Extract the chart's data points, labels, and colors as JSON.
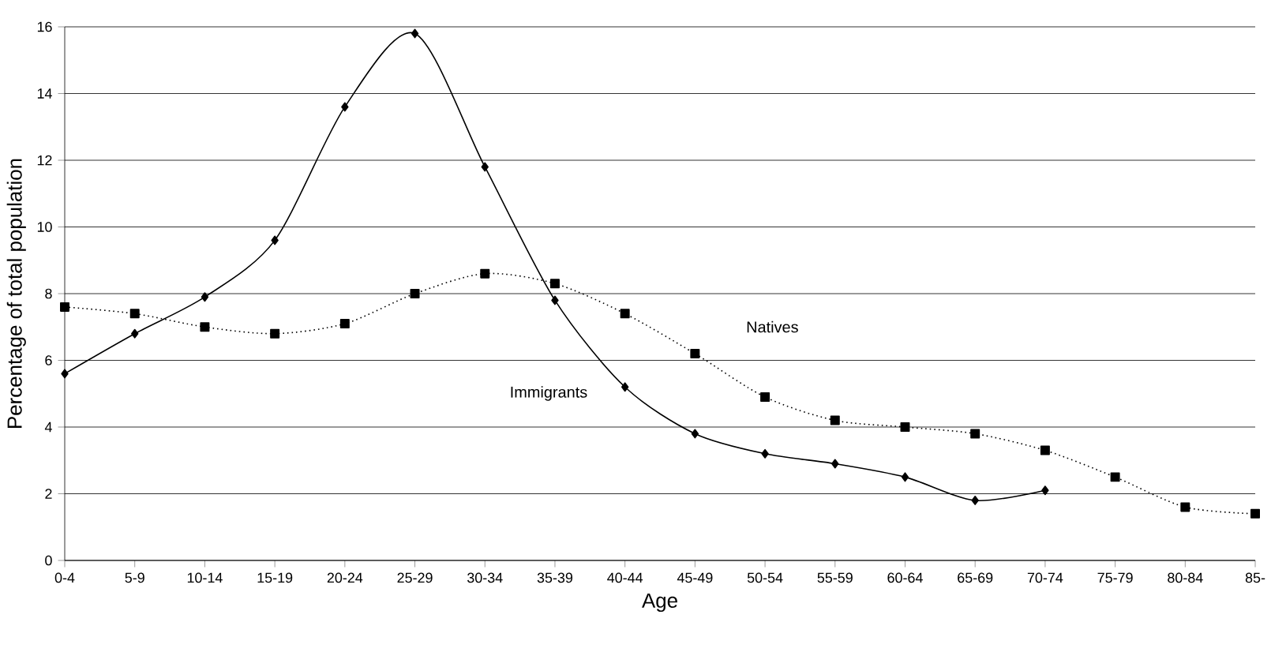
{
  "chart_data": {
    "type": "line",
    "xlabel": "Age",
    "ylabel": "Percentage of total population",
    "categories": [
      "0-4",
      "5-9",
      "10-14",
      "15-19",
      "20-24",
      "25-29",
      "30-34",
      "35-39",
      "40-44",
      "45-49",
      "50-54",
      "55-59",
      "60-64",
      "65-69",
      "70-74",
      "75-79",
      "80-84",
      "85-"
    ],
    "series": [
      {
        "name": "Immigrants",
        "color": "#000000",
        "marker": "diamond",
        "line_style": "solid",
        "values": [
          5.6,
          6.8,
          7.9,
          9.6,
          13.6,
          15.8,
          11.8,
          7.8,
          5.2,
          3.8,
          3.2,
          2.9,
          2.5,
          1.8,
          2.1,
          null,
          null,
          null
        ]
      },
      {
        "name": "Natives",
        "color": "#000000",
        "marker": "square",
        "line_style": "dotted",
        "values": [
          7.6,
          7.4,
          7.0,
          6.8,
          7.1,
          8.0,
          8.6,
          8.3,
          7.4,
          6.2,
          4.9,
          4.2,
          4.0,
          3.8,
          3.3,
          2.5,
          1.6,
          1.4
        ]
      }
    ],
    "ylim": [
      0,
      16
    ],
    "yticks": [
      0,
      2,
      4,
      6,
      8,
      10,
      12,
      14,
      16
    ],
    "grid": "y"
  }
}
